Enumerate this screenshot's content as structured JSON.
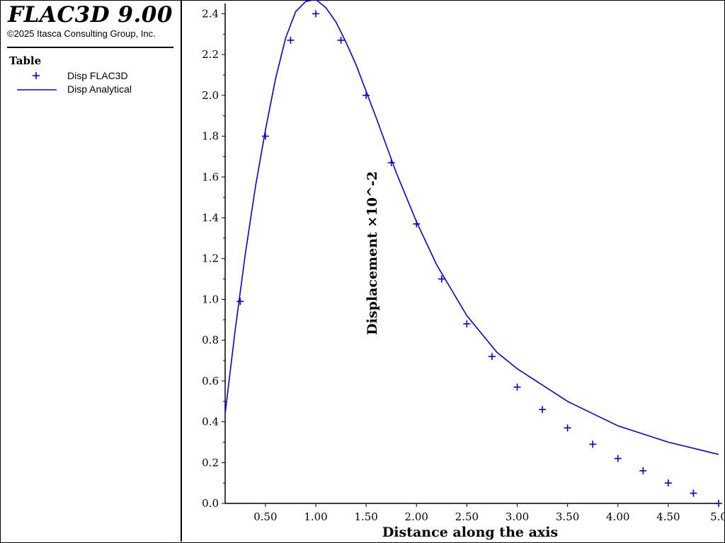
{
  "app": {
    "title": "FLAC3D 9.00",
    "copyright": "©2025 Itasca Consulting Group, Inc."
  },
  "legend": {
    "title": "Table",
    "entries": [
      {
        "label": "Disp FLAC3D",
        "symbol": "plus-marker",
        "color": "#0000e0"
      },
      {
        "label": "Disp Analytical",
        "symbol": "line",
        "color": "#0000e0"
      }
    ]
  },
  "chart_data": {
    "type": "line",
    "xlabel": "Distance along the axis",
    "ylabel": "Displacement  ×10^-2",
    "xlim": [
      0.1,
      5.0
    ],
    "ylim": [
      0.0,
      2.45
    ],
    "xticks": [
      "0.50",
      "1.00",
      "1.50",
      "2.00",
      "2.50",
      "3.00",
      "3.50",
      "4.00",
      "4.50",
      "5.0"
    ],
    "yticks": [
      "0.0",
      "0.2",
      "0.4",
      "0.6",
      "0.8",
      "1.0",
      "1.2",
      "1.4",
      "1.6",
      "1.8",
      "2.0",
      "2.2",
      "2.4"
    ],
    "grid": false,
    "series": [
      {
        "name": "Disp FLAC3D",
        "style": "markers",
        "color": "#0000e0",
        "x": [
          0.25,
          0.5,
          0.75,
          1.0,
          1.25,
          1.5,
          1.75,
          2.0,
          2.25,
          2.5,
          2.75,
          3.0,
          3.25,
          3.5,
          3.75,
          4.0,
          4.25,
          4.5,
          4.75,
          5.0
        ],
        "y": [
          0.99,
          1.8,
          2.27,
          2.4,
          2.27,
          2.0,
          1.67,
          1.37,
          1.1,
          0.88,
          0.72,
          0.57,
          0.46,
          0.37,
          0.29,
          0.22,
          0.16,
          0.1,
          0.05,
          0.0
        ]
      },
      {
        "name": "Disp Analytical",
        "style": "line",
        "color": "#0000e0",
        "x": [
          0.1,
          0.2,
          0.3,
          0.4,
          0.5,
          0.6,
          0.7,
          0.8,
          0.9,
          1.0,
          1.1,
          1.2,
          1.3,
          1.4,
          1.5,
          1.6,
          1.8,
          2.0,
          2.2,
          2.5,
          2.8,
          3.0,
          3.5,
          4.0,
          4.5,
          5.0
        ],
        "y": [
          0.44,
          0.85,
          1.22,
          1.55,
          1.83,
          2.08,
          2.28,
          2.41,
          2.46,
          2.47,
          2.43,
          2.36,
          2.26,
          2.15,
          2.02,
          1.89,
          1.62,
          1.38,
          1.17,
          0.92,
          0.74,
          0.66,
          0.5,
          0.38,
          0.3,
          0.24
        ]
      }
    ]
  }
}
